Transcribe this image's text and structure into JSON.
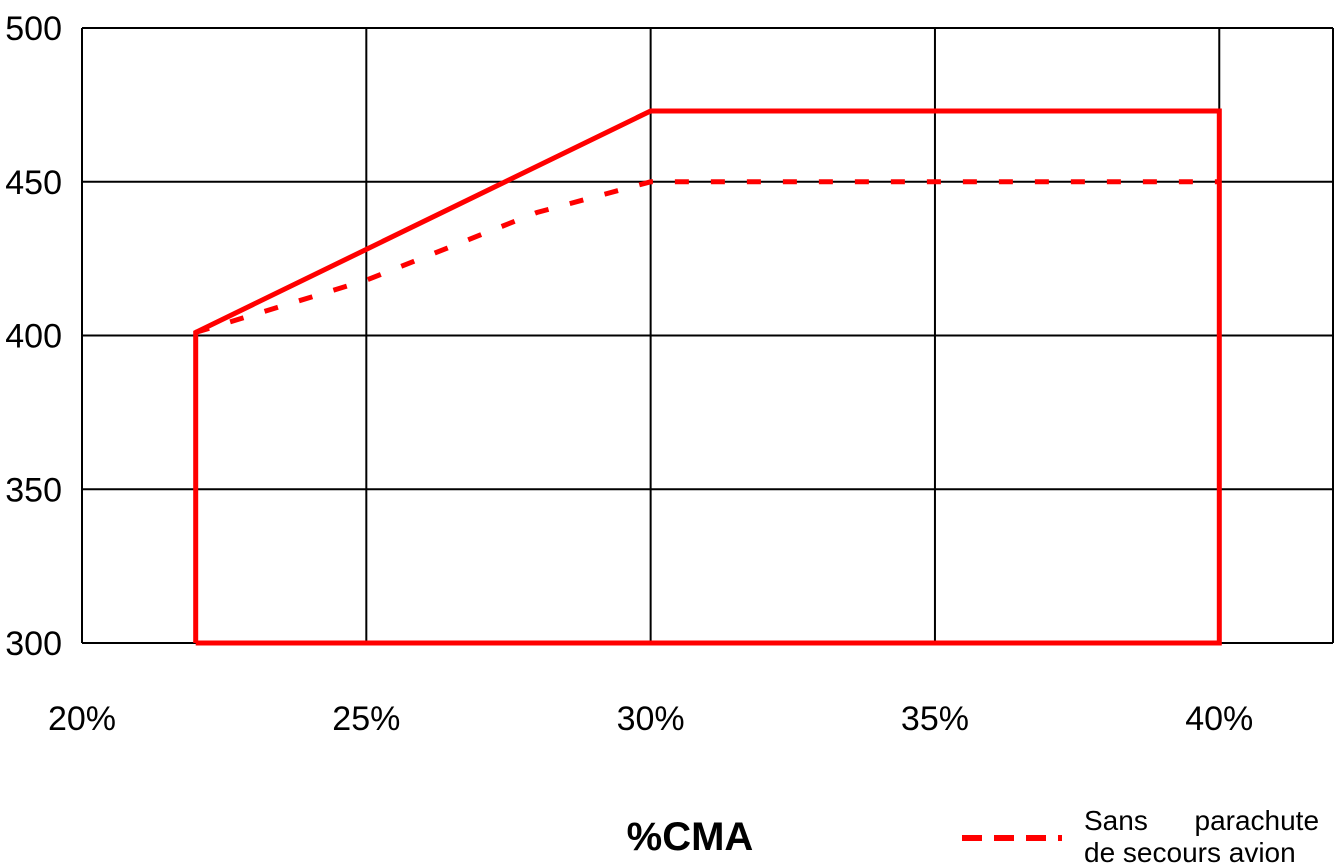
{
  "chart_data": {
    "type": "line",
    "xlabel": "%CMA",
    "ylabel": "",
    "xlim": [
      20,
      42
    ],
    "ylim": [
      300,
      500
    ],
    "x_ticks": [
      20,
      25,
      30,
      35,
      40
    ],
    "x_tick_labels": [
      "20%",
      "25%",
      "30%",
      "35%",
      "40%"
    ],
    "y_ticks": [
      300,
      350,
      400,
      450,
      500
    ],
    "y_tick_labels": [
      "300",
      "350",
      "400",
      "450",
      "500"
    ],
    "grid": true,
    "colors": {
      "series": "#ff0000",
      "grid": "#000000"
    },
    "series": [
      {
        "name": "",
        "style": "solid",
        "x": [
          22,
          22,
          30,
          40,
          40,
          22
        ],
        "y": [
          300,
          401,
          473,
          473,
          300,
          300
        ]
      },
      {
        "name": "Sans parachute de secours avion",
        "style": "dashed",
        "x": [
          22,
          25,
          28,
          30,
          40
        ],
        "y": [
          401,
          418,
          440,
          450,
          450
        ]
      }
    ],
    "legend": {
      "placement": "bottom-right",
      "entries": [
        {
          "line1": "Sans      parachute",
          "line2": "de secours avion"
        }
      ]
    }
  }
}
